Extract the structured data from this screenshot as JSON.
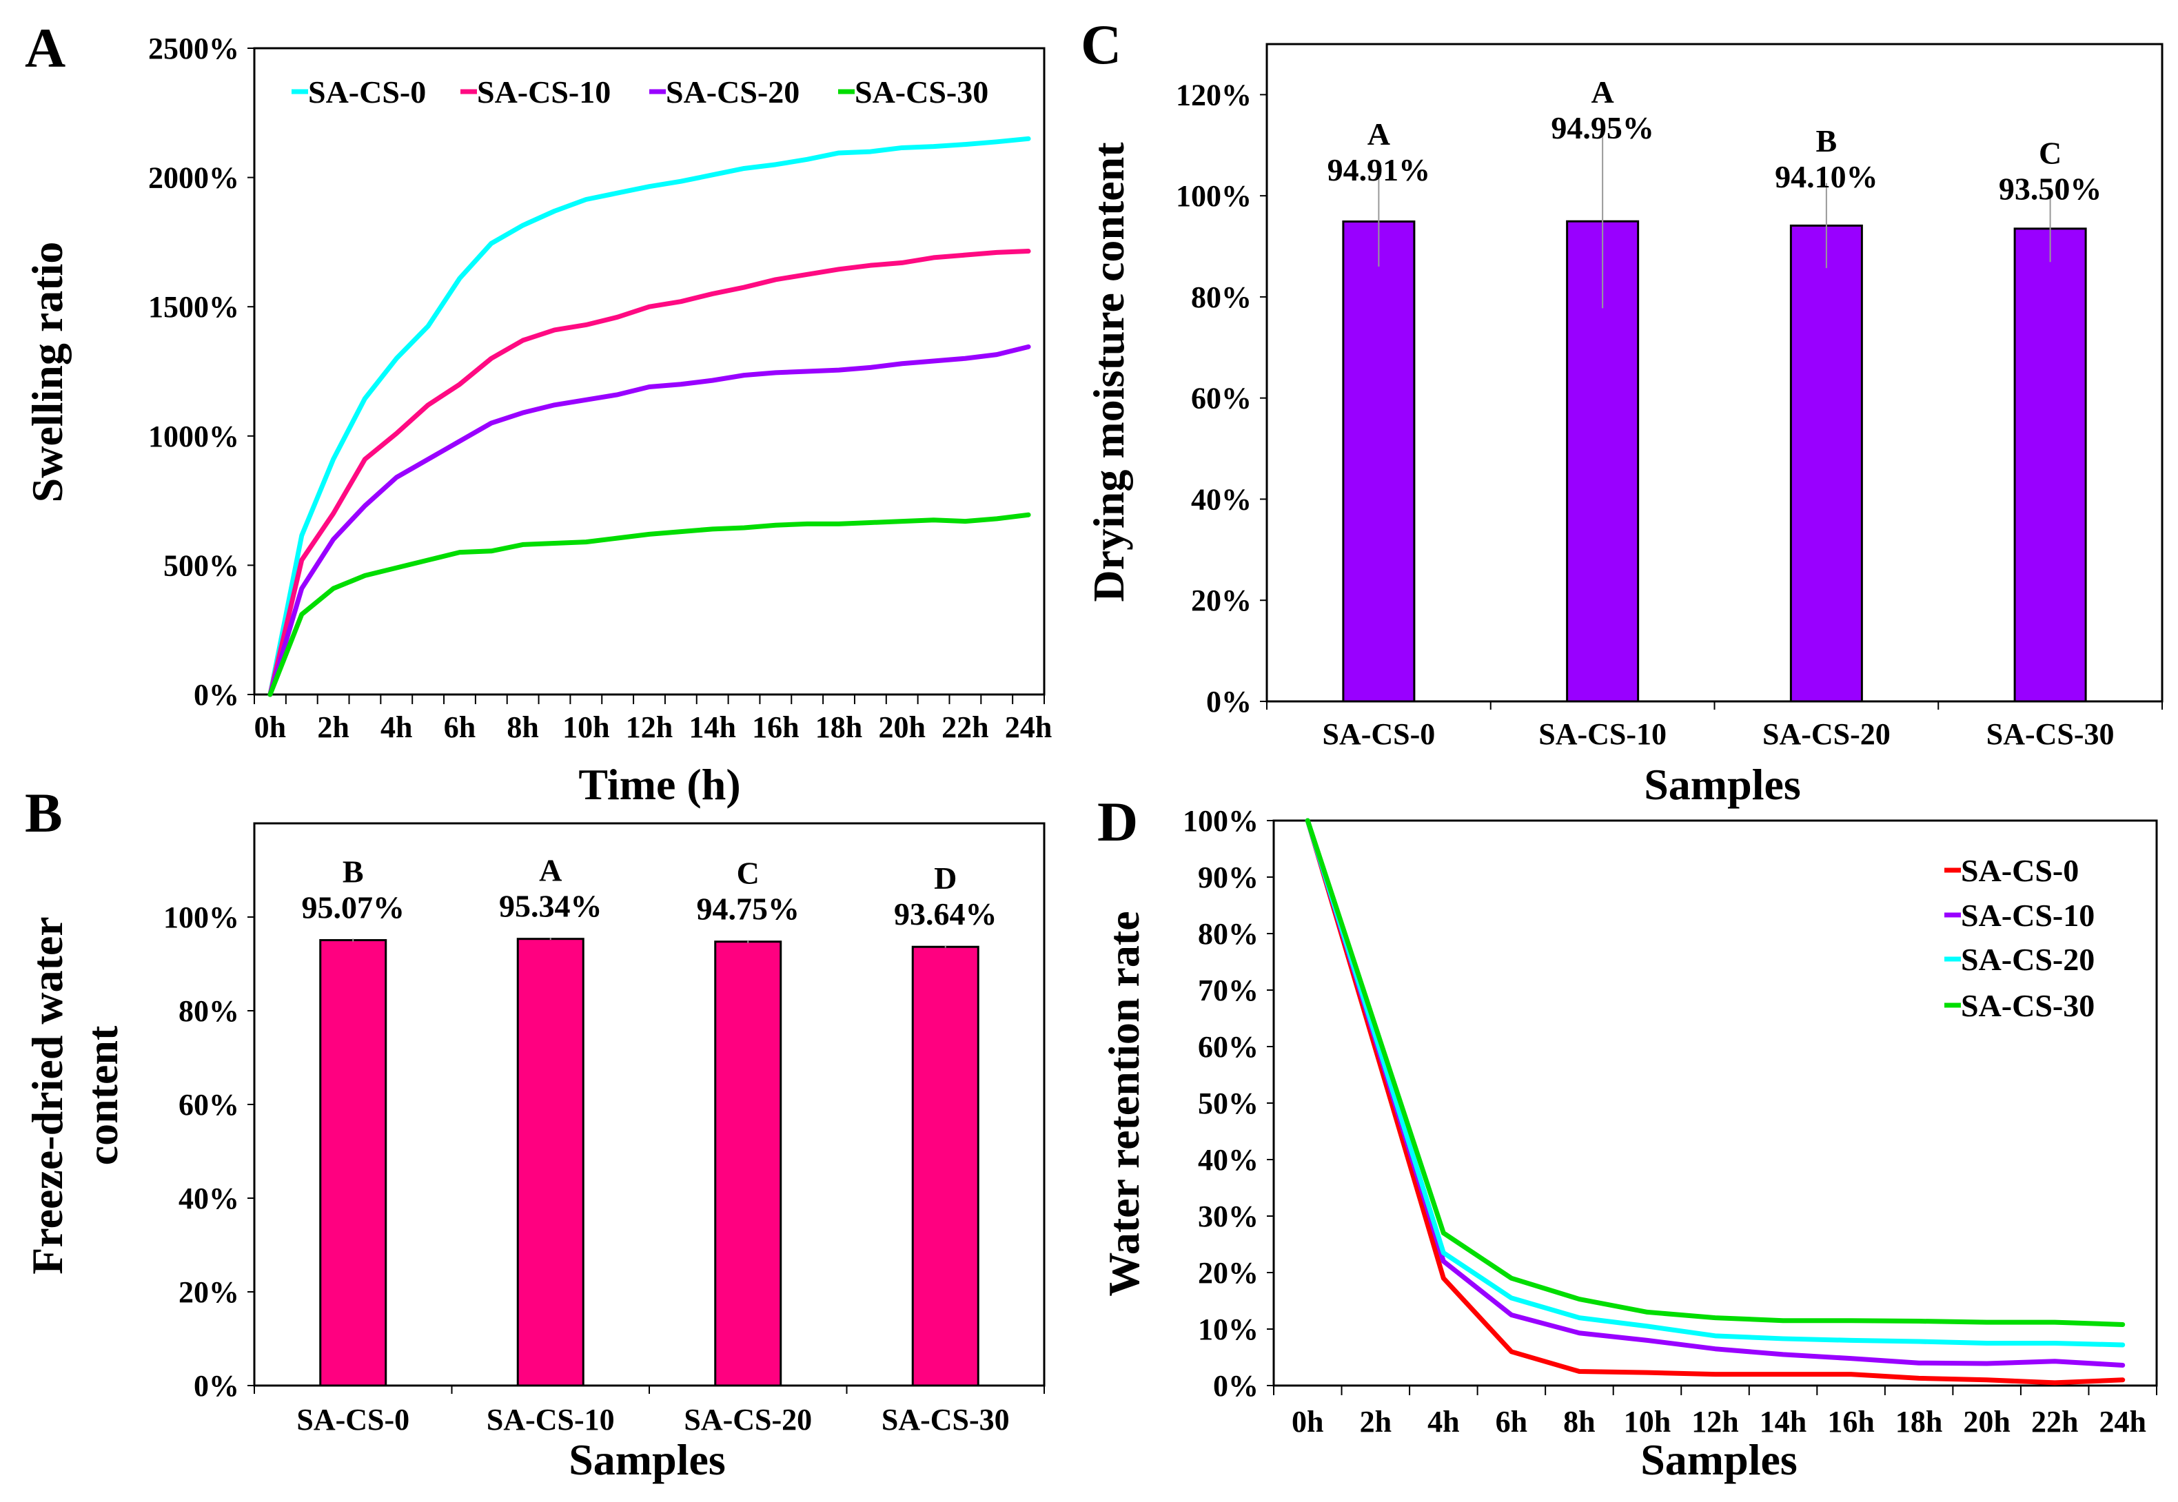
{
  "colors": {
    "cyan": "#00FFFF",
    "pink": "#FF0A82",
    "purple": "#9900FF",
    "green": "#00DD00",
    "red": "#FF0000",
    "bar_b": "#FF0080",
    "bar_c": "#9900FF",
    "errbar": "#999999"
  },
  "chart_data": [
    {
      "panel": "A",
      "type": "line",
      "title": "",
      "xlabel": "Time (h)",
      "ylabel": "Swelling ratio",
      "ylim": [
        0,
        2500
      ],
      "yticks": [
        "0%",
        "500%",
        "1000%",
        "1500%",
        "2000%",
        "2500%"
      ],
      "ytick_values": [
        0,
        500,
        1000,
        1500,
        2000,
        2500
      ],
      "x": [
        "0h",
        "1h",
        "2h",
        "3h",
        "4h",
        "5h",
        "6h",
        "7h",
        "8h",
        "9h",
        "10h",
        "11h",
        "12h",
        "13h",
        "14h",
        "15h",
        "16h",
        "17h",
        "18h",
        "19h",
        "20h",
        "21h",
        "22h",
        "23h",
        "24h"
      ],
      "xtick_labels": [
        "0h",
        "",
        "2h",
        "",
        "4h",
        "",
        "6h",
        "",
        "8h",
        "",
        "10h",
        "",
        "12h",
        "",
        "14h",
        "",
        "16h",
        "",
        "18h",
        "",
        "20h",
        "",
        "22h",
        "",
        "24h"
      ],
      "legend_position": "top",
      "series": [
        {
          "name": "SA-CS-0",
          "color": "#00FFFF",
          "values": [
            0,
            615,
            910,
            1145,
            1300,
            1425,
            1610,
            1745,
            1815,
            1870,
            1915,
            1940,
            1965,
            1985,
            2010,
            2035,
            2050,
            2070,
            2095,
            2100,
            2115,
            2120,
            2128,
            2138,
            2150
          ]
        },
        {
          "name": "SA-CS-10",
          "color": "#FF0A82",
          "values": [
            0,
            520,
            700,
            910,
            1010,
            1120,
            1200,
            1300,
            1370,
            1410,
            1430,
            1460,
            1500,
            1520,
            1550,
            1575,
            1605,
            1625,
            1645,
            1660,
            1670,
            1690,
            1700,
            1710,
            1715
          ]
        },
        {
          "name": "SA-CS-20",
          "color": "#9900FF",
          "values": [
            0,
            410,
            600,
            730,
            840,
            910,
            980,
            1050,
            1090,
            1120,
            1140,
            1160,
            1190,
            1200,
            1215,
            1235,
            1245,
            1250,
            1255,
            1265,
            1280,
            1290,
            1300,
            1315,
            1345
          ]
        },
        {
          "name": "SA-CS-30",
          "color": "#00DD00",
          "values": [
            0,
            310,
            410,
            460,
            490,
            520,
            550,
            555,
            580,
            585,
            590,
            605,
            620,
            630,
            640,
            645,
            655,
            660,
            660,
            665,
            670,
            675,
            670,
            680,
            695
          ]
        }
      ]
    },
    {
      "panel": "B",
      "type": "bar",
      "title": "",
      "xlabel": "Samples",
      "ylabel": [
        "Freeze-dried water",
        "content"
      ],
      "ylim": [
        0,
        120
      ],
      "yticks": [
        "0%",
        "20%",
        "40%",
        "60%",
        "80%",
        "100%"
      ],
      "ytick_values": [
        0,
        20,
        40,
        60,
        80,
        100
      ],
      "categories": [
        "SA-CS-0",
        "SA-CS-10",
        "SA-CS-20",
        "SA-CS-30"
      ],
      "values": [
        95.07,
        95.34,
        94.75,
        93.64
      ],
      "errors": [
        0.3,
        0.2,
        0.3,
        0.2
      ],
      "value_labels": [
        "95.07%",
        "95.34%",
        "94.75%",
        "93.64%"
      ],
      "significance": [
        "B",
        "A",
        "C",
        "D"
      ],
      "color": "#FF0080"
    },
    {
      "panel": "C",
      "type": "bar",
      "title": "",
      "xlabel": "Samples",
      "ylabel": "Drying moisture content",
      "ylim": [
        0,
        130
      ],
      "yticks": [
        "0%",
        "20%",
        "40%",
        "60%",
        "80%",
        "100%",
        "120%"
      ],
      "ytick_values": [
        0,
        20,
        40,
        60,
        80,
        100,
        120
      ],
      "categories": [
        "SA-CS-0",
        "SA-CS-10",
        "SA-CS-20",
        "SA-CS-30"
      ],
      "values": [
        94.91,
        94.95,
        94.1,
        93.5
      ],
      "errors": [
        8.9,
        17.2,
        8.4,
        6.6
      ],
      "value_labels": [
        "94.91%",
        "94.95%",
        "94.10%",
        "93.50%"
      ],
      "significance": [
        "A",
        "A",
        "B",
        "C"
      ],
      "color": "#9900FF"
    },
    {
      "panel": "D",
      "type": "line",
      "title": "",
      "xlabel": "Samples",
      "ylabel": "Water retention rate",
      "ylim": [
        0,
        100
      ],
      "yticks": [
        "0%",
        "10%",
        "20%",
        "30%",
        "40%",
        "50%",
        "60%",
        "70%",
        "80%",
        "90%",
        "100%"
      ],
      "ytick_values": [
        0,
        10,
        20,
        30,
        40,
        50,
        60,
        70,
        80,
        90,
        100
      ],
      "x": [
        "0h",
        "2h",
        "4h",
        "6h",
        "8h",
        "10h",
        "12h",
        "14h",
        "16h",
        "18h",
        "20h",
        "22h",
        "24h"
      ],
      "xtick_labels": [
        "0h",
        "2h",
        "4h",
        "6h",
        "8h",
        "10h",
        "12h",
        "14h",
        "16h",
        "18h",
        "20h",
        "22h",
        "24h"
      ],
      "legend_position": "top-right",
      "series": [
        {
          "name": "SA-CS-0",
          "color": "#FF0000",
          "values": [
            100,
            null,
            19,
            6,
            2.5,
            2.3,
            2,
            2,
            2,
            1.3,
            1,
            0.5,
            1
          ]
        },
        {
          "name": "SA-CS-10",
          "color": "#9900FF",
          "values": [
            100,
            null,
            22,
            12.5,
            9.3,
            8,
            6.5,
            5.5,
            4.8,
            4,
            3.9,
            4.3,
            3.6
          ]
        },
        {
          "name": "SA-CS-20",
          "color": "#00FFFF",
          "values": [
            100,
            null,
            23.5,
            15.5,
            12,
            10.5,
            8.8,
            8.3,
            8,
            7.8,
            7.5,
            7.5,
            7.2
          ]
        },
        {
          "name": "SA-CS-30",
          "color": "#00DD00",
          "values": [
            100,
            null,
            27,
            19,
            15.3,
            13,
            12,
            11.5,
            11.5,
            11.4,
            11.2,
            11.2,
            10.8
          ]
        }
      ]
    }
  ]
}
